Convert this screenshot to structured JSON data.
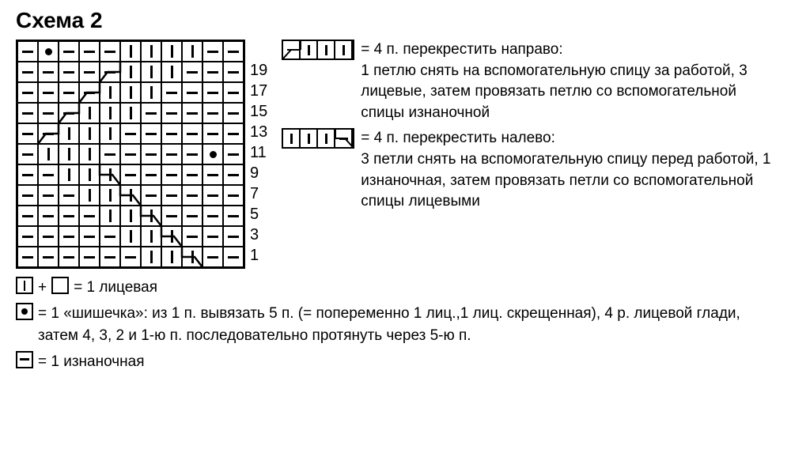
{
  "title": "Схема 2",
  "cell_size": 26,
  "cols": 11,
  "rows": 11,
  "row_labels": [
    "19",
    "",
    "17",
    "",
    "15",
    "",
    "13",
    "",
    "11",
    "",
    "9",
    "",
    "7",
    "",
    "5",
    "",
    "3",
    "",
    "1"
  ],
  "row_labels_used": [
    "19",
    "17",
    "15",
    "13",
    "11",
    "9",
    "7",
    "5",
    "3",
    "1"
  ],
  "grid": [
    [
      "dash",
      "dot",
      "dash",
      "dash",
      "dash",
      "bar",
      "bar",
      "bar",
      "bar",
      "dash",
      "dash"
    ],
    [
      "dash",
      "dash",
      "dash",
      "dash",
      "dash",
      "bar",
      "bar",
      "bar",
      "dash",
      "dash",
      "dash"
    ],
    [
      "dash",
      "dash",
      "dash",
      "dash",
      "bar",
      "bar",
      "bar",
      "dash",
      "dash",
      "dash",
      "dash"
    ],
    [
      "dash",
      "dash",
      "dash",
      "bar",
      "bar",
      "bar",
      "dash",
      "dash",
      "dash",
      "dash",
      "dash"
    ],
    [
      "dash",
      "dash",
      "bar",
      "bar",
      "bar",
      "dash",
      "dash",
      "dash",
      "dash",
      "dash",
      "dash"
    ],
    [
      "dash",
      "bar",
      "bar",
      "bar",
      "dash",
      "dash",
      "dash",
      "dash",
      "dash",
      "dot",
      "dash"
    ],
    [
      "dash",
      "dash",
      "bar",
      "bar",
      "bar",
      "dash",
      "dash",
      "dash",
      "dash",
      "dash",
      "dash"
    ],
    [
      "dash",
      "dash",
      "dash",
      "bar",
      "bar",
      "bar",
      "dash",
      "dash",
      "dash",
      "dash",
      "dash"
    ],
    [
      "dash",
      "dash",
      "dash",
      "dash",
      "bar",
      "bar",
      "bar",
      "dash",
      "dash",
      "dash",
      "dash"
    ],
    [
      "dash",
      "dash",
      "dash",
      "dash",
      "dash",
      "bar",
      "bar",
      "bar",
      "dash",
      "dash",
      "dash"
    ],
    [
      "dash",
      "dash",
      "dash",
      "dash",
      "dash",
      "dash",
      "bar",
      "bar",
      "bar",
      "dash",
      "dash"
    ]
  ],
  "cables": [
    {
      "type": "right",
      "row": 1,
      "col_start": 4
    },
    {
      "type": "right",
      "row": 2,
      "col_start": 3
    },
    {
      "type": "right",
      "row": 3,
      "col_start": 2
    },
    {
      "type": "right",
      "row": 4,
      "col_start": 1
    },
    {
      "type": "left",
      "row": 6,
      "col_start": 1
    },
    {
      "type": "left",
      "row": 7,
      "col_start": 2
    },
    {
      "type": "left",
      "row": 8,
      "col_start": 3
    },
    {
      "type": "left",
      "row": 9,
      "col_start": 4
    },
    {
      "type": "left",
      "row": 10,
      "col_start": 5
    }
  ],
  "legend_right": {
    "cross_right": {
      "label": "= 4 п. перекрестить направо:",
      "desc": "1 петлю снять на вспомогательную спицу за работой, 3 лицевые, затем провязать петлю со вспомогательной спицы изна­ночной"
    },
    "cross_left": {
      "label": "= 4 п. перекрестить налево:",
      "desc": "3 петли снять на вспомогательную спицу перед работой, 1 изнаночная, затем про­вязать петли со вспомогательной спицы лицевыми"
    }
  },
  "legend_bottom": {
    "knit": "= 1 лицевая",
    "bobble": "= 1 «шишечка»: из 1 п. вывязать 5 п. (= попеременно 1 лиц.,1 лиц. скрещенная), 4 р. лицевой глади, затем 4, 3, 2 и 1-ю п. последовательно протянуть через 5-ю п.",
    "purl": "= 1 изнаночная"
  },
  "colors": {
    "ink": "#000000",
    "bg": "#ffffff"
  }
}
